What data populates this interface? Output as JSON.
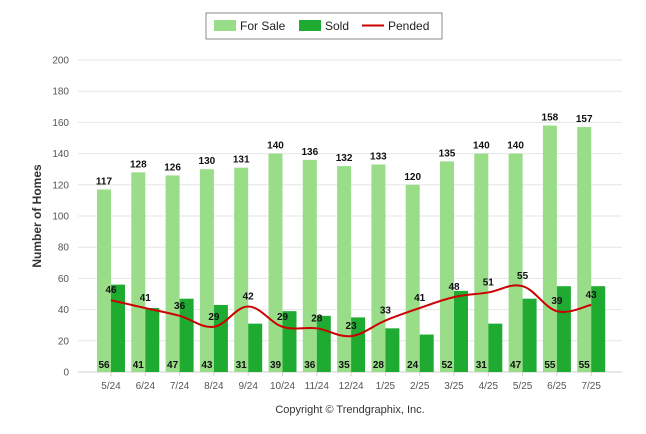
{
  "colors": {
    "for_sale": "#99dd88",
    "sold": "#1faa32",
    "pended": "#cc0000",
    "grid": "#e6e6e6"
  },
  "copyright": "Copyright © Trendgraphix, Inc.",
  "chart_data": {
    "type": "bar",
    "xlabel": "",
    "ylabel": "Number of Homes",
    "ylim": [
      0,
      200
    ],
    "yticks": [
      0,
      20,
      40,
      60,
      80,
      100,
      120,
      140,
      160,
      180,
      200
    ],
    "grid": true,
    "legend_position": "top-center",
    "categories": [
      "5/24",
      "6/24",
      "7/24",
      "8/24",
      "9/24",
      "10/24",
      "11/24",
      "12/24",
      "1/25",
      "2/25",
      "3/25",
      "4/25",
      "5/25",
      "6/25",
      "7/25"
    ],
    "series": [
      {
        "name": "For Sale",
        "type": "bar",
        "values": [
          117,
          128,
          126,
          130,
          131,
          140,
          136,
          132,
          133,
          120,
          135,
          140,
          140,
          158,
          157
        ]
      },
      {
        "name": "Sold",
        "type": "bar",
        "values": [
          56,
          41,
          47,
          43,
          31,
          39,
          36,
          35,
          28,
          24,
          52,
          31,
          47,
          55,
          55
        ]
      },
      {
        "name": "Pended",
        "type": "line",
        "values": [
          46,
          41,
          36,
          29,
          42,
          29,
          28,
          23,
          33,
          41,
          48,
          51,
          55,
          39,
          43
        ]
      }
    ]
  }
}
